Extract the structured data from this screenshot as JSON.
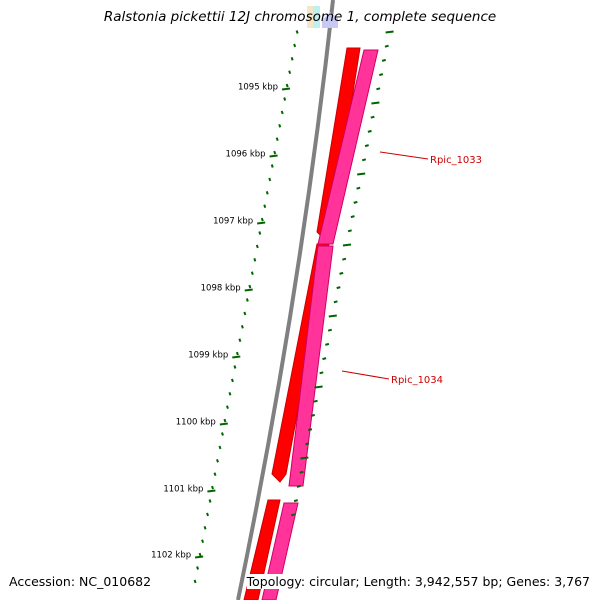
{
  "title": "Ralstonia pickettii 12J chromosome 1, complete sequence",
  "accession": "Accession: NC_010682",
  "summary": "Topology: circular; Length: 3,942,557 bp; Genes: 3,767",
  "ticks": [
    "1095 kbp",
    "1096 kbp",
    "1097 kbp",
    "1098 kbp",
    "1099 kbp",
    "1100 kbp",
    "1101 kbp",
    "1102 kbp"
  ],
  "genes": [
    {
      "label": "Rpic_1033"
    },
    {
      "label": "Rpic_1034"
    }
  ],
  "colors": {
    "cds_strand": "#ff0000",
    "gene_strand": "#ff3399",
    "label": "#cc0000",
    "tick": "#006600",
    "backbone": "#808080"
  }
}
